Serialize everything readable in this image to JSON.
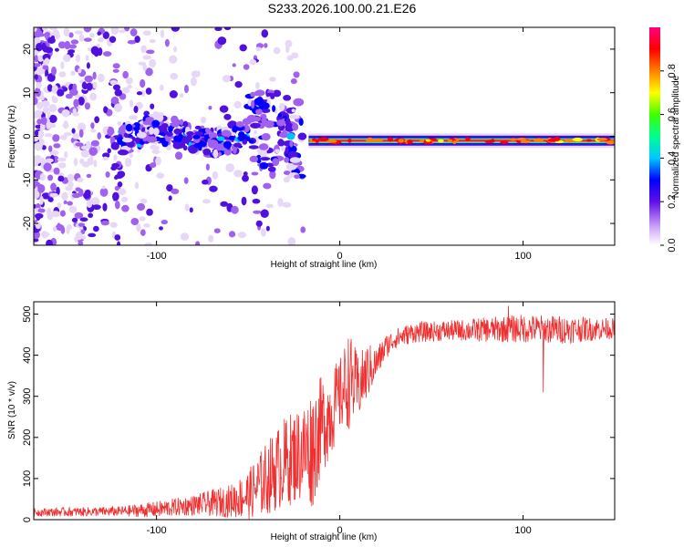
{
  "title": "S233.2026.100.00.21.E26",
  "chart_data": [
    {
      "type": "heatmap",
      "xlabel": "Height of straight line (km)",
      "ylabel": "Frequency (Hz)",
      "xlim": [
        -167,
        150
      ],
      "ylim": [
        -25,
        25
      ],
      "xticks": [
        -100,
        0,
        100
      ],
      "yticks": [
        -20,
        -10,
        0,
        10,
        20
      ],
      "colorbar": {
        "label": "Normalized spectral amplitude",
        "range": [
          0,
          1
        ],
        "ticks": [
          0.0,
          0.2,
          0.4,
          0.6,
          0.8
        ]
      },
      "colormap": [
        "#ffffff",
        "#e8d8f8",
        "#a060f0",
        "#5010e0",
        "#0000ff",
        "#00bfff",
        "#00ff80",
        "#40ff00",
        "#ffff00",
        "#ff8000",
        "#ff0000",
        "#ff0080"
      ],
      "features": {
        "stable_line": {
          "x_range": [
            -17,
            150
          ],
          "frequency": -1,
          "amplitude": 1.0
        },
        "scatter_region": {
          "x_range": [
            -167,
            -20
          ],
          "frequency_range": [
            -25,
            25
          ]
        }
      }
    },
    {
      "type": "line",
      "xlabel": "Height of straight line (km)",
      "ylabel": "SNR (10 * v/v)",
      "xlim": [
        -167,
        150
      ],
      "ylim": [
        0,
        530
      ],
      "xticks": [
        -100,
        0,
        100
      ],
      "yticks": [
        0,
        100,
        200,
        300,
        400,
        500
      ],
      "color": "#f03030",
      "trend": {
        "x": [
          -167,
          -120,
          -100,
          -80,
          -60,
          -50,
          -40,
          -30,
          -20,
          -15,
          -10,
          -5,
          0,
          5,
          10,
          15,
          20,
          25,
          30,
          40,
          60,
          80,
          100,
          120,
          150
        ],
        "y": [
          18,
          20,
          25,
          35,
          45,
          60,
          100,
          140,
          165,
          175,
          230,
          260,
          300,
          340,
          320,
          360,
          380,
          420,
          440,
          455,
          460,
          462,
          465,
          462,
          465
        ]
      },
      "noise_amplitude": [
        10,
        12,
        20,
        25,
        40,
        60,
        90,
        110,
        120,
        150,
        120,
        110,
        90,
        120,
        80,
        70,
        40,
        30,
        25,
        25,
        25,
        30,
        35,
        35,
        25
      ],
      "outliers": [
        {
          "x": 111,
          "y": 310
        },
        {
          "x": 92,
          "y": 520
        }
      ]
    }
  ]
}
